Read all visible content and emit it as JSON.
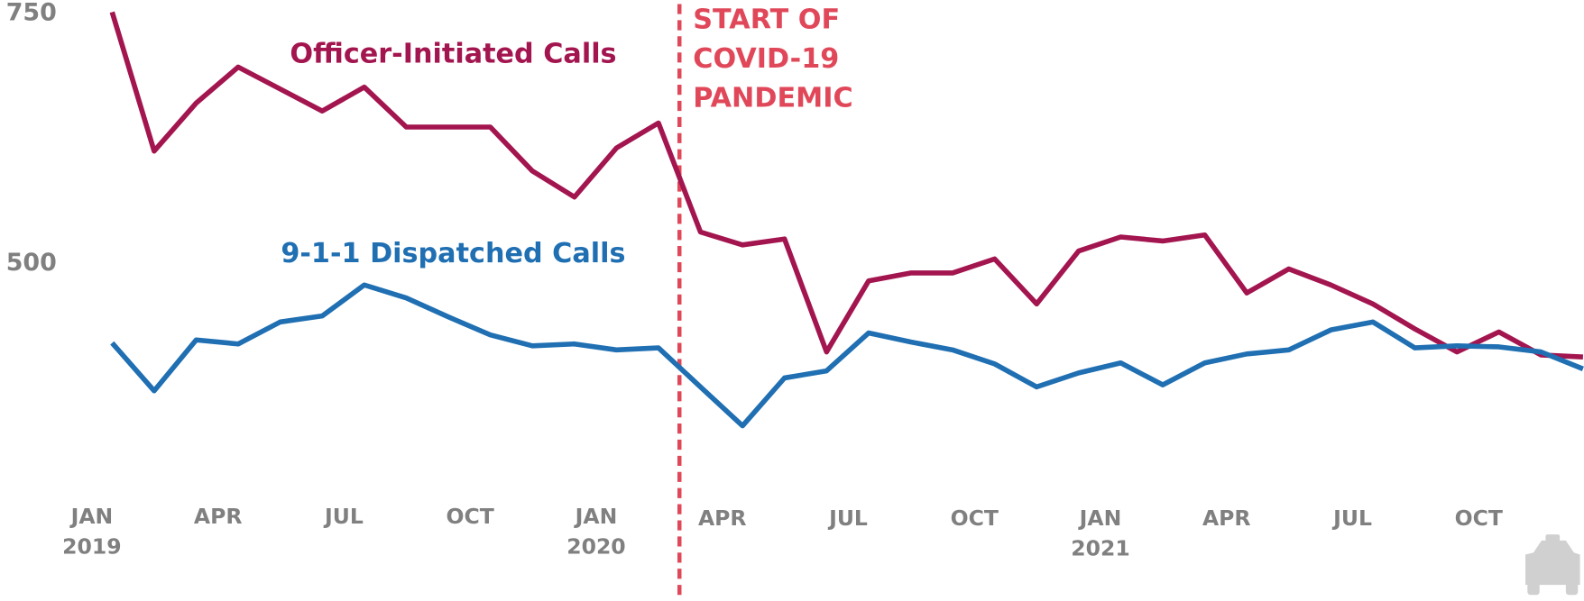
{
  "chart_data": {
    "type": "line",
    "categories": [
      "JAN 2019",
      null,
      null,
      "APR",
      null,
      null,
      "JUL",
      null,
      null,
      "OCT",
      null,
      null,
      "JAN 2020",
      null,
      null,
      "APR",
      null,
      null,
      "JUL",
      null,
      null,
      "OCT",
      null,
      null,
      "JAN 2021",
      null,
      null,
      "APR",
      null,
      null,
      "JUL",
      null,
      null,
      "OCT",
      null,
      null
    ],
    "series": [
      {
        "name": "Officer-Initiated Calls",
        "color": "#a3154f",
        "values": [
          752,
          613,
          661,
          697,
          675,
          653,
          677,
          637,
          637,
          637,
          593,
          567,
          616,
          641,
          532,
          519,
          525,
          412,
          483,
          491,
          491,
          505,
          460,
          513,
          527,
          523,
          529,
          471,
          495,
          479,
          460,
          435,
          412,
          432,
          409,
          407
        ]
      },
      {
        "name": "9-1-1 Dispatched Calls",
        "color": "#1f6fb2",
        "values": [
          421,
          373,
          424,
          420,
          442,
          448,
          479,
          466,
          447,
          429,
          418,
          420,
          414,
          416,
          377,
          338,
          386,
          393,
          431,
          422,
          414,
          400,
          377,
          391,
          401,
          379,
          401,
          410,
          414,
          434,
          442,
          416,
          418,
          417,
          412,
          395
        ]
      }
    ],
    "ylim": [
      300,
      750
    ],
    "yticks": [
      500,
      750
    ],
    "grid": false,
    "annotation": [
      "START OF",
      "COVID-19",
      "PANDEMIC"
    ]
  }
}
